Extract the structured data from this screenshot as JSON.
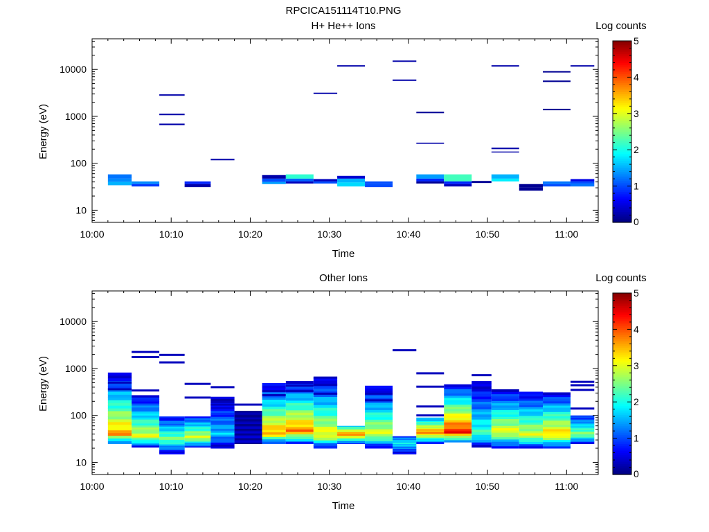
{
  "page_title": "RPCICA151114T10.PNG",
  "colors": {
    "background": "#ffffff",
    "axes": "#000000"
  },
  "chart_data": [
    {
      "type": "heatmap",
      "title": "H+ He++ Ions",
      "xlabel": "Time",
      "ylabel": "Energy (eV)",
      "yscale": "log",
      "xlim_minutes": [
        0,
        64
      ],
      "ylim": [
        5.5,
        45000
      ],
      "xticks": [
        "10:00",
        "10:10",
        "10:20",
        "10:30",
        "10:40",
        "10:50",
        "11:00"
      ],
      "yticks": [
        "10",
        "100",
        "1000",
        "10000"
      ],
      "colorbar": {
        "label": "Log counts",
        "range": [
          0,
          5
        ],
        "ticks": [
          "0",
          "1",
          "2",
          "3",
          "4",
          "5"
        ]
      },
      "cells": [
        [
          2,
          5,
          47,
          58,
          1.2
        ],
        [
          2,
          5,
          40,
          47,
          1.3
        ],
        [
          2,
          5,
          34,
          40,
          1.5
        ],
        [
          5,
          8.5,
          36,
          41,
          1.3
        ],
        [
          5,
          8.5,
          32,
          36,
          0.9
        ],
        [
          8.5,
          11.7,
          2750,
          2950,
          0.2
        ],
        [
          8.5,
          11.7,
          1060,
          1140,
          0.2
        ],
        [
          8.5,
          11.7,
          650,
          700,
          0.2
        ],
        [
          11.7,
          15,
          36,
          41,
          0.8
        ],
        [
          11.7,
          15,
          31,
          36,
          0.2
        ],
        [
          15,
          18,
          116,
          124,
          0.2
        ],
        [
          21.5,
          24.5,
          47,
          56,
          0.2
        ],
        [
          21.5,
          24.5,
          40,
          47,
          1.0
        ],
        [
          21.5,
          24.5,
          36,
          40,
          1.4
        ],
        [
          24.5,
          28,
          47,
          58,
          2.1
        ],
        [
          24.5,
          28,
          41,
          47,
          1.1
        ],
        [
          24.5,
          28,
          37,
          41,
          0.3
        ],
        [
          28,
          31,
          3000,
          3200,
          0.2
        ],
        [
          28,
          31,
          41,
          46,
          0.3
        ],
        [
          28,
          31,
          37,
          41,
          1.0
        ],
        [
          31,
          34.5,
          11500,
          12300,
          0.2
        ],
        [
          31,
          34.5,
          47,
          54,
          0.4
        ],
        [
          31,
          34.5,
          39,
          47,
          1.5
        ],
        [
          31,
          34.5,
          32,
          39,
          1.7
        ],
        [
          34.5,
          38,
          36,
          41,
          1.0
        ],
        [
          34.5,
          38,
          31,
          36,
          1.0
        ],
        [
          38,
          41,
          14500,
          15500,
          0.2
        ],
        [
          38,
          41,
          5700,
          6100,
          0.2
        ],
        [
          41,
          44.5,
          1170,
          1250,
          0.1
        ],
        [
          41,
          44.5,
          260,
          275,
          0.2
        ],
        [
          41,
          44.5,
          47,
          58,
          1.4
        ],
        [
          41,
          44.5,
          41,
          47,
          0.8
        ],
        [
          41,
          44.5,
          37,
          41,
          0.1
        ],
        [
          44.5,
          48,
          41,
          58,
          2.2
        ],
        [
          44.5,
          48,
          36,
          41,
          0.8
        ],
        [
          44.5,
          48,
          32,
          36,
          0.3
        ],
        [
          48,
          50.5,
          38,
          42,
          0.1
        ],
        [
          50.5,
          54,
          11500,
          12300,
          0.2
        ],
        [
          50.5,
          54,
          200,
          215,
          0.2
        ],
        [
          50.5,
          54,
          170,
          178,
          0.2
        ],
        [
          50.5,
          54,
          47,
          58,
          1.5
        ],
        [
          50.5,
          54,
          41,
          47,
          1.8
        ],
        [
          54,
          57,
          31,
          36,
          0.1
        ],
        [
          54,
          57,
          26,
          31,
          0.1
        ],
        [
          57,
          60.5,
          8600,
          9200,
          0.1
        ],
        [
          57,
          60.5,
          5400,
          5800,
          0.1
        ],
        [
          57,
          60.5,
          1350,
          1450,
          0.1
        ],
        [
          57,
          60.5,
          36,
          41,
          1.2
        ],
        [
          57,
          60.5,
          32,
          36,
          1.0
        ],
        [
          60.5,
          63.5,
          11500,
          12300,
          0.2
        ],
        [
          60.5,
          63.5,
          41,
          46,
          0.5
        ],
        [
          60.5,
          63.5,
          37,
          41,
          1.0
        ],
        [
          60.5,
          63.5,
          32,
          37,
          1.2
        ]
      ]
    },
    {
      "type": "heatmap",
      "title": "Other Ions",
      "xlabel": "Time",
      "ylabel": "Energy (eV)",
      "yscale": "log",
      "xlim_minutes": [
        0,
        64
      ],
      "ylim": [
        5.5,
        45000
      ],
      "xticks": [
        "10:00",
        "10:10",
        "10:20",
        "10:30",
        "10:40",
        "10:50",
        "11:00"
      ],
      "yticks": [
        "10",
        "100",
        "1000",
        "10000"
      ],
      "colorbar": {
        "label": "Log counts",
        "range": [
          0,
          5
        ],
        "ticks": [
          "0",
          "1",
          "2",
          "3",
          "4",
          "5"
        ]
      },
      "profiles": [
        {
          "x": [
            2,
            5
          ],
          "bottom": 25,
          "top": 820,
          "peak_energy": 40,
          "peak_value": 3.6,
          "lines": [
            500,
            360
          ]
        },
        {
          "x": [
            5,
            8.5
          ],
          "bottom": 21,
          "top": 270,
          "peak_energy": 36,
          "peak_value": 3.0,
          "lines": [
            2250,
            1750,
            340
          ]
        },
        {
          "x": [
            8.5,
            11.7
          ],
          "bottom": 15,
          "top": 95,
          "peak_energy": 32,
          "peak_value": 2.5,
          "lines": [
            1950,
            1350
          ]
        },
        {
          "x": [
            11.7,
            15
          ],
          "bottom": 21,
          "top": 95,
          "peak_energy": 34,
          "peak_value": 3.0,
          "lines": [
            470,
            240
          ]
        },
        {
          "x": [
            15,
            18
          ],
          "bottom": 20,
          "top": 250,
          "peak_energy": 40,
          "peak_value": 1.6,
          "lines": [
            400,
            170
          ]
        },
        {
          "x": [
            18,
            21.5
          ],
          "bottom": 25,
          "top": 125,
          "peak_energy": 30,
          "peak_value": 0.3,
          "lines": [
            170
          ]
        },
        {
          "x": [
            21.5,
            24.5
          ],
          "bottom": 25,
          "top": 490,
          "peak_energy": 42,
          "peak_value": 3.6,
          "lines": [
            330,
            270
          ]
        },
        {
          "x": [
            24.5,
            28
          ],
          "bottom": 25,
          "top": 540,
          "peak_energy": 46,
          "peak_value": 3.8,
          "lines": [
            430,
            330
          ]
        },
        {
          "x": [
            28,
            31
          ],
          "bottom": 20,
          "top": 640,
          "peak_energy": 38,
          "peak_value": 3.2,
          "lines": [
            640,
            450,
            290
          ]
        },
        {
          "x": [
            31,
            34.5
          ],
          "bottom": 25,
          "top": 60,
          "peak_energy": 40,
          "peak_value": 3.8,
          "lines": []
        },
        {
          "x": [
            34.5,
            38
          ],
          "bottom": 20,
          "top": 430,
          "peak_energy": 40,
          "peak_value": 3.0,
          "lines": [
            290,
            210
          ]
        },
        {
          "x": [
            38,
            41
          ],
          "bottom": 15,
          "top": 36,
          "peak_energy": 26,
          "peak_value": 1.9,
          "lines": [
            2450
          ]
        },
        {
          "x": [
            41,
            44.5
          ],
          "bottom": 25,
          "top": 90,
          "peak_energy": 44,
          "peak_value": 3.8,
          "lines": [
            790,
            410,
            155,
            100
          ]
        },
        {
          "x": [
            44.5,
            48
          ],
          "bottom": 27,
          "top": 460,
          "peak_energy": 44,
          "peak_value": 4.3,
          "lines": []
        },
        {
          "x": [
            48,
            50.5
          ],
          "bottom": 21,
          "top": 540,
          "peak_energy": 40,
          "peak_value": 2.2,
          "lines": [
            720
          ]
        },
        {
          "x": [
            50.5,
            54
          ],
          "bottom": 20,
          "top": 360,
          "peak_energy": 44,
          "peak_value": 3.1,
          "lines": []
        },
        {
          "x": [
            54,
            57
          ],
          "bottom": 20,
          "top": 320,
          "peak_energy": 38,
          "peak_value": 3.0,
          "lines": []
        },
        {
          "x": [
            57,
            60.5
          ],
          "bottom": 20,
          "top": 310,
          "peak_energy": 40,
          "peak_value": 3.4,
          "lines": []
        },
        {
          "x": [
            60.5,
            63.5
          ],
          "bottom": 25,
          "top": 100,
          "peak_energy": 40,
          "peak_value": 2.6,
          "lines": [
            520,
            440,
            350,
            140
          ]
        }
      ]
    }
  ]
}
